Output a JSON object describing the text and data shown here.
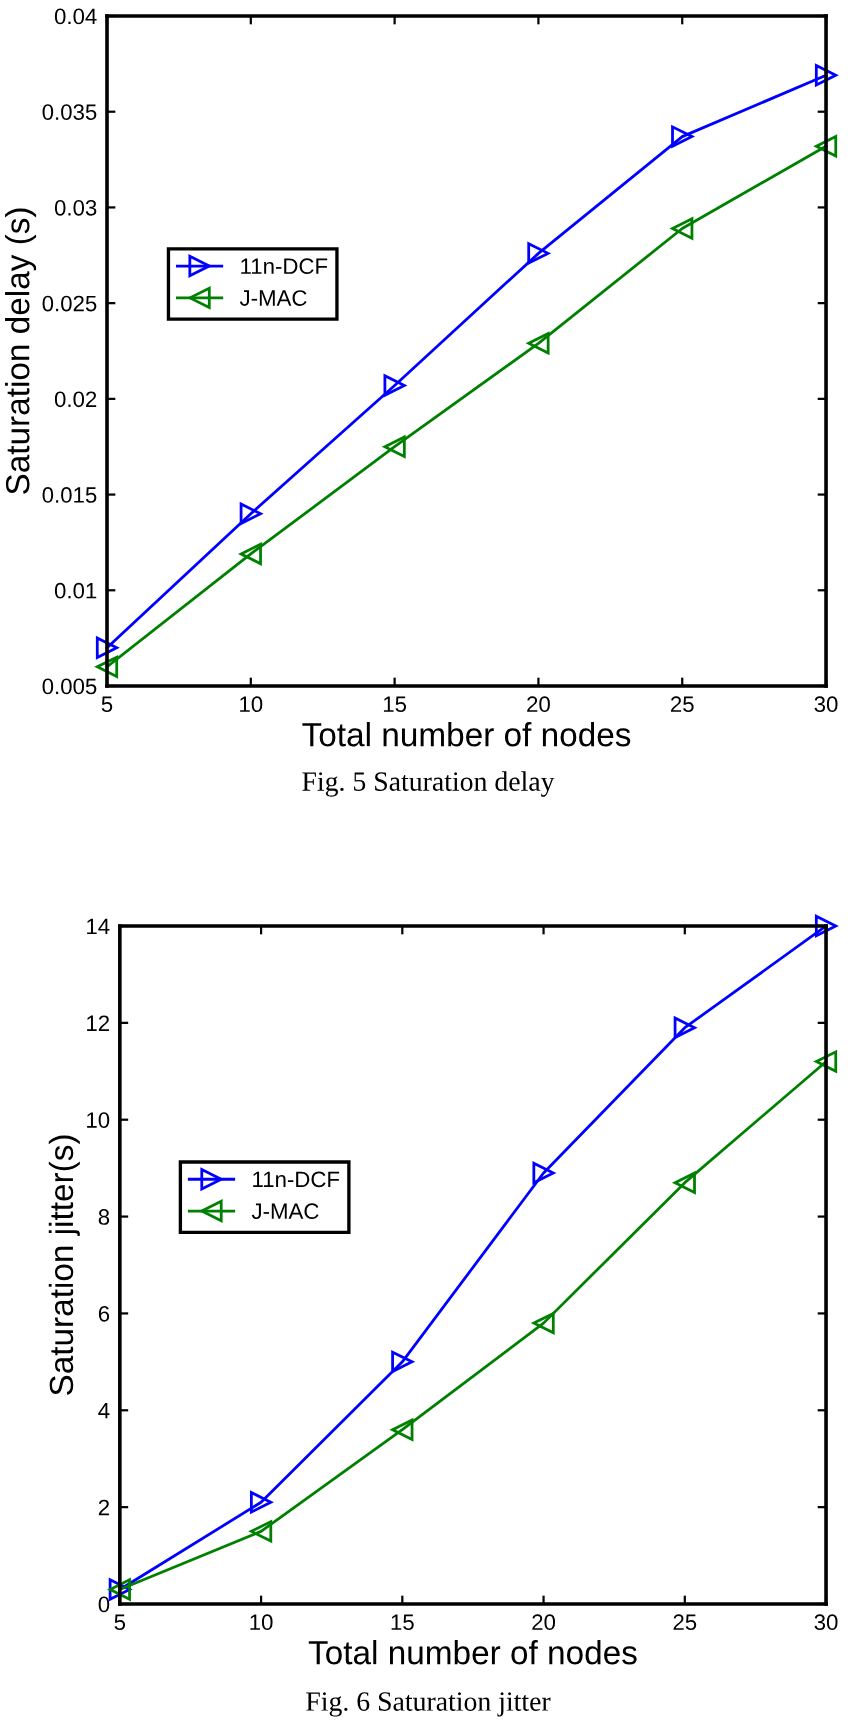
{
  "chart_data": [
    {
      "type": "line",
      "xlabel": "Total number of nodes",
      "ylabel": "Saturation delay (s)",
      "x": [
        5,
        10,
        15,
        20,
        25,
        30
      ],
      "series": [
        {
          "name": "11n-DCF",
          "color": "#0000ff",
          "marker": "triangle_right",
          "values": [
            0.007,
            0.014,
            0.0207,
            0.0276,
            0.0337,
            0.0369
          ]
        },
        {
          "name": "J-MAC",
          "color": "#008000",
          "marker": "triangle_left",
          "values": [
            0.006,
            0.0119,
            0.0175,
            0.0229,
            0.0289,
            0.0332
          ]
        }
      ],
      "xlim": [
        5,
        30
      ],
      "ylim": [
        0.005,
        0.04
      ],
      "xticks": [
        5,
        10,
        15,
        20,
        25,
        30
      ],
      "yticks": [
        0.005,
        0.01,
        0.015,
        0.02,
        0.025,
        0.03,
        0.035,
        0.04
      ],
      "grid": false,
      "legend": "left",
      "annotations": [
        "Fig. 5 Saturation delay"
      ]
    },
    {
      "type": "line",
      "xlabel": "Total number of nodes",
      "ylabel": "Saturation jitter(s)",
      "x": [
        5,
        10,
        15,
        20,
        25,
        30
      ],
      "series": [
        {
          "name": "11n-DCF",
          "color": "#0000ff",
          "marker": "triangle_right",
          "values": [
            0.3,
            2.1,
            5.0,
            8.9,
            11.9,
            14.0
          ]
        },
        {
          "name": "J-MAC",
          "color": "#008000",
          "marker": "triangle_left",
          "values": [
            0.3,
            1.5,
            3.6,
            5.8,
            8.7,
            11.2
          ]
        }
      ],
      "xlim": [
        5,
        30
      ],
      "ylim": [
        0,
        14
      ],
      "xticks": [
        5,
        10,
        15,
        20,
        25,
        30
      ],
      "yticks": [
        0,
        2,
        4,
        6,
        8,
        10,
        12,
        14
      ],
      "grid": false,
      "legend": "left",
      "annotations": [
        "Fig. 6 Saturation jitter"
      ]
    }
  ]
}
